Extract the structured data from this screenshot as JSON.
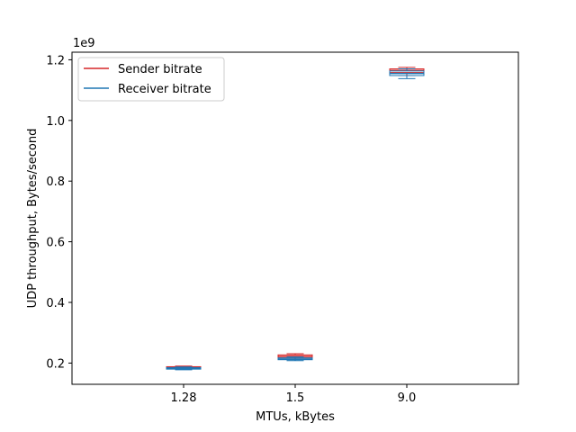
{
  "chart_data": {
    "type": "box",
    "xlabel": "MTUs, kBytes",
    "ylabel": "UDP throughput, Bytes/second",
    "offset_text": "1e9",
    "categories": [
      "1.28",
      "1.5",
      "9.0"
    ],
    "ylim": [
      0.13,
      1.225
    ],
    "yticks": [
      0.2,
      0.4,
      0.6,
      0.8,
      1.0,
      1.2
    ],
    "ytick_labels": [
      "0.2",
      "0.4",
      "0.6",
      "0.8",
      "1.0",
      "1.2"
    ],
    "legend_position": "upper-left",
    "grid": false,
    "series": [
      {
        "name": "Sender bitrate",
        "color": "#d62728",
        "boxes": [
          {
            "whislo": 0.182,
            "q1": 0.184,
            "med": 0.1865,
            "q3": 0.188,
            "whishi": 0.19
          },
          {
            "whislo": 0.213,
            "q1": 0.217,
            "med": 0.222,
            "q3": 0.227,
            "whishi": 0.231
          },
          {
            "whislo": 1.148,
            "q1": 1.158,
            "med": 1.165,
            "q3": 1.17,
            "whishi": 1.175
          }
        ]
      },
      {
        "name": "Receiver bitrate",
        "color": "#1f77b4",
        "boxes": [
          {
            "whislo": 0.178,
            "q1": 0.18,
            "med": 0.182,
            "q3": 0.185,
            "whishi": 0.187
          },
          {
            "whislo": 0.208,
            "q1": 0.211,
            "med": 0.213,
            "q3": 0.217,
            "whishi": 0.22
          },
          {
            "whislo": 1.138,
            "q1": 1.148,
            "med": 1.155,
            "q3": 1.163,
            "whishi": 1.17
          }
        ]
      }
    ]
  }
}
